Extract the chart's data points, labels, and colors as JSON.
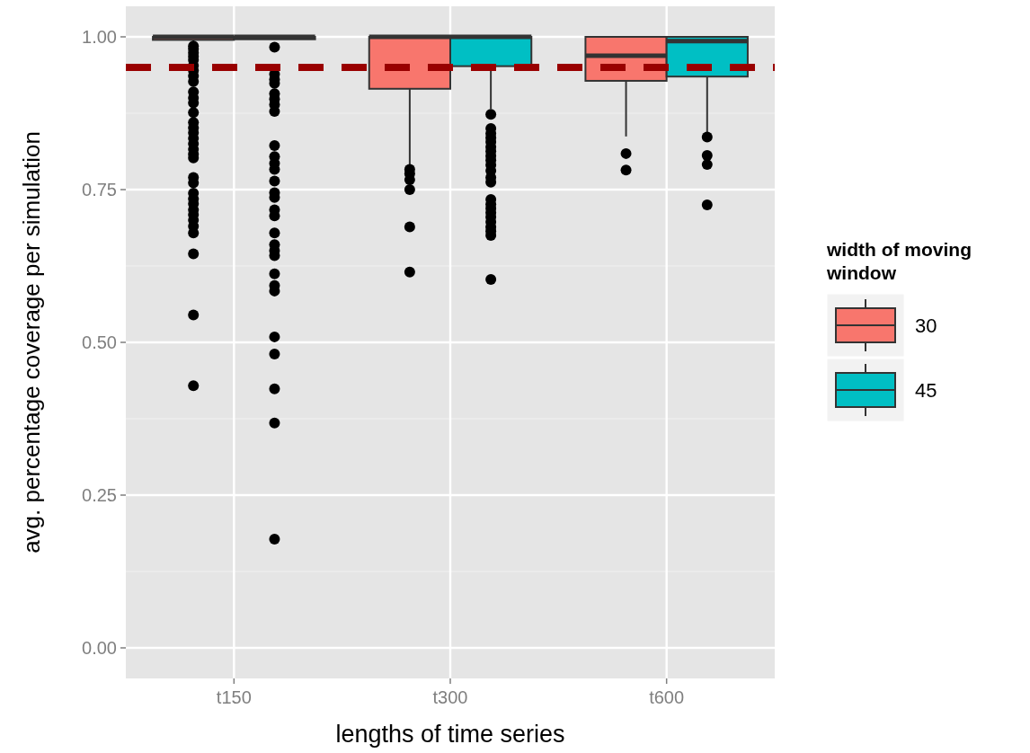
{
  "chart_data": {
    "type": "box",
    "xlabel": "lengths of time series",
    "ylabel": "avg. percentage coverage per simulation",
    "legend_title": "width of moving window",
    "categories": [
      "t150",
      "t300",
      "t600"
    ],
    "ylim": [
      -0.05,
      1.05
    ],
    "yticks": [
      {
        "value": 0,
        "label": "0.00"
      },
      {
        "value": 0.25,
        "label": "0.25"
      },
      {
        "value": 0.5,
        "label": "0.50"
      },
      {
        "value": 0.75,
        "label": "0.75"
      },
      {
        "value": 1,
        "label": "1.00"
      }
    ],
    "grid": true,
    "legend": "right",
    "series": [
      {
        "name": "30",
        "color": "#f8766d",
        "boxes": [
          {
            "low": 0.99,
            "q1": 0.995,
            "median": 1,
            "q3": 1,
            "high": 1,
            "outliers": [
              0.985,
              0.98,
              0.974,
              0.968,
              0.962,
              0.953,
              0.945,
              0.936,
              0.927,
              0.91,
              0.9,
              0.892,
              0.876,
              0.86,
              0.851,
              0.843,
              0.834,
              0.825,
              0.816,
              0.808,
              0.802,
              0.77,
              0.761,
              0.744,
              0.735,
              0.727,
              0.717,
              0.709,
              0.7,
              0.69,
              0.679,
              0.645,
              0.545,
              0.429
            ]
          },
          {
            "low": 0.79,
            "q1": 0.915,
            "median": 1,
            "q3": 1,
            "high": 1,
            "outliers": [
              0.783,
              0.776,
              0.766,
              0.75,
              0.689,
              0.615
            ]
          },
          {
            "low": 0.837,
            "q1": 0.928,
            "median": 0.969,
            "q3": 1,
            "high": 1,
            "outliers": [
              0.809,
              0.782
            ]
          }
        ]
      },
      {
        "name": "45",
        "color": "#00bfc4",
        "boxes": [
          {
            "low": 0.996,
            "q1": 0.996,
            "median": 1,
            "q3": 1,
            "high": 1,
            "outliers": [
              0.983,
              0.939,
              0.93,
              0.924,
              0.907,
              0.898,
              0.889,
              0.878,
              0.822,
              0.804,
              0.793,
              0.783,
              0.764,
              0.745,
              0.737,
              0.717,
              0.707,
              0.679,
              0.66,
              0.65,
              0.642,
              0.612,
              0.593,
              0.584,
              0.509,
              0.481,
              0.424,
              0.368,
              0.178
            ]
          },
          {
            "low": 0.882,
            "q1": 0.952,
            "median": 1,
            "q3": 1,
            "high": 1,
            "outliers": [
              0.873,
              0.85,
              0.842,
              0.835,
              0.828,
              0.82,
              0.813,
              0.805,
              0.798,
              0.79,
              0.781,
              0.77,
              0.762,
              0.734,
              0.726,
              0.719,
              0.712,
              0.705,
              0.697,
              0.689,
              0.682,
              0.675,
              0.603
            ]
          },
          {
            "low": 0.84,
            "q1": 0.935,
            "median": 0.993,
            "q3": 1,
            "high": 1,
            "outliers": [
              0.836,
              0.806,
              0.791,
              0.725
            ]
          }
        ]
      }
    ],
    "ref_lines": [
      {
        "axis": "y",
        "value": 0.95,
        "color": "#990000",
        "line_style": "dashed"
      }
    ]
  }
}
